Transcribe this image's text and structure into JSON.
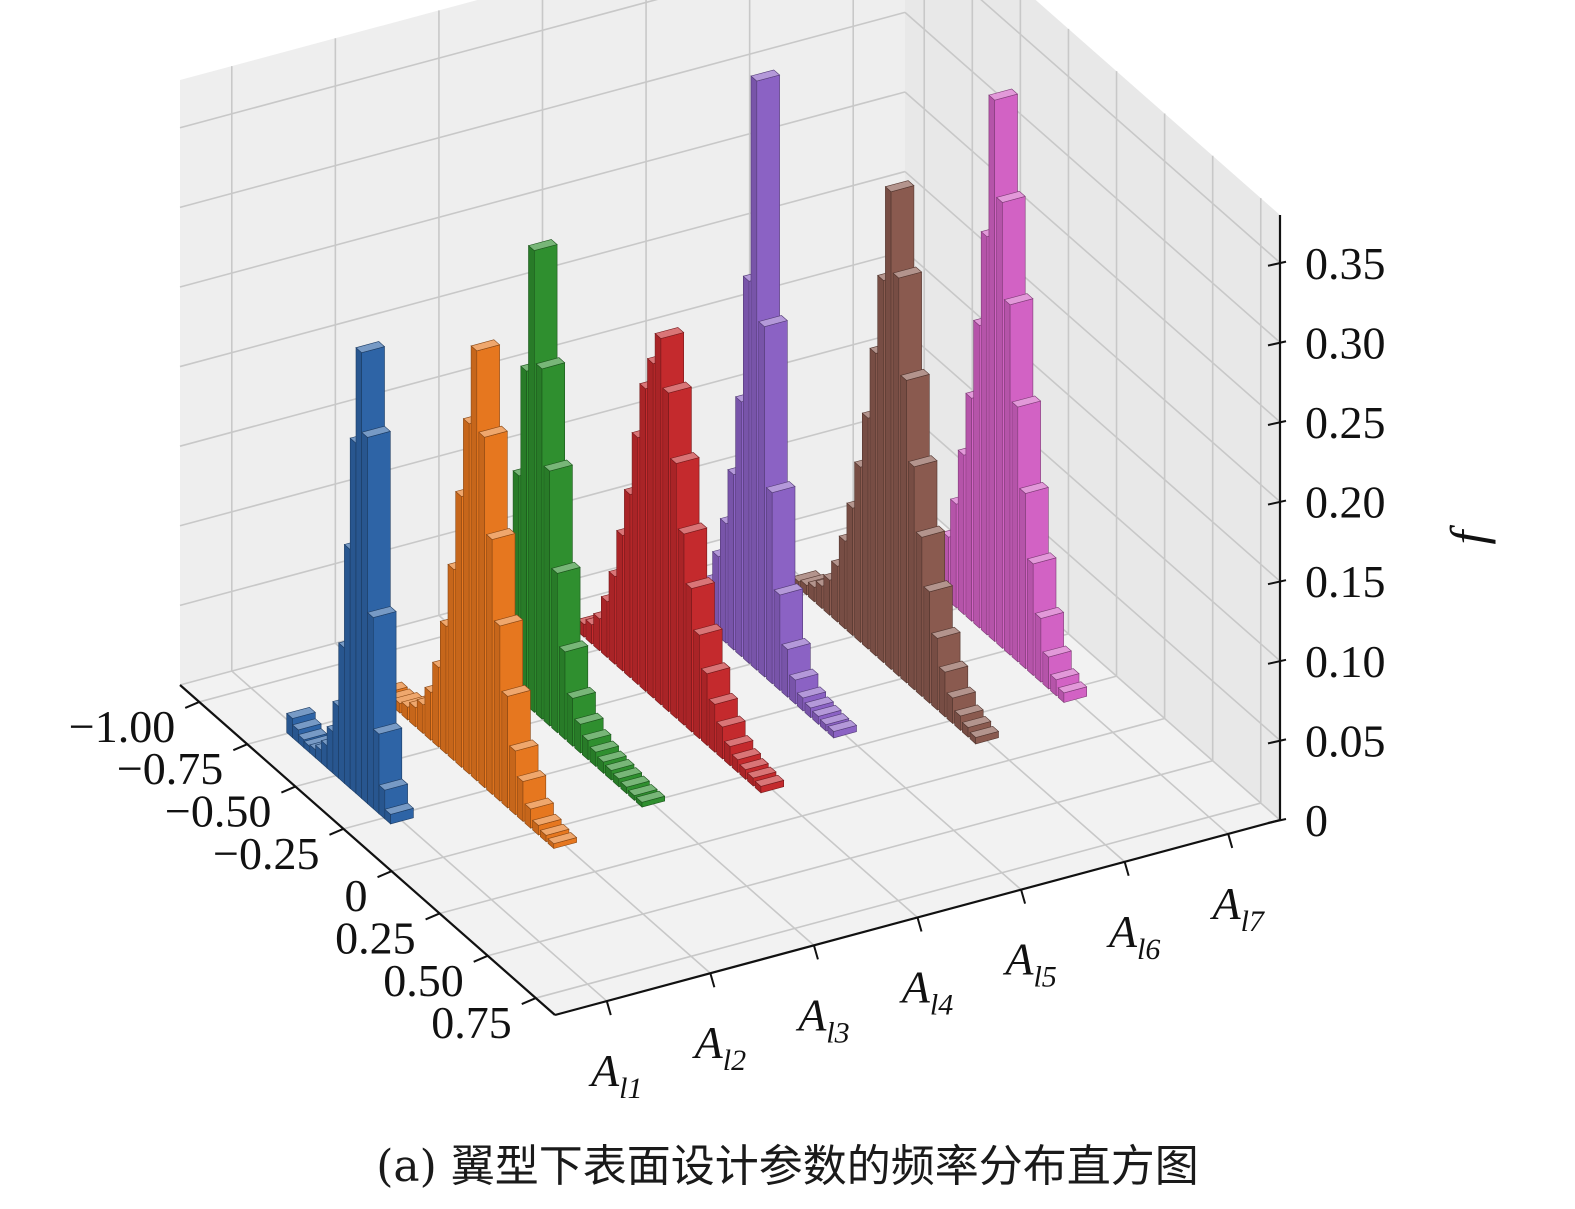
{
  "caption": "(a) 翼型下表面设计参数的频率分布直方图",
  "chart_data": {
    "type": "bar3d",
    "zlabel": "f",
    "zlim": [
      0,
      0.38
    ],
    "z_ticks": [
      "0",
      "0.05",
      "0.10",
      "0.15",
      "0.20",
      "0.25",
      "0.30",
      "0.35"
    ],
    "z_tick_values": [
      0,
      0.05,
      0.1,
      0.15,
      0.2,
      0.25,
      0.3,
      0.35
    ],
    "x_ticks": [
      "−1.00",
      "−0.75",
      "−0.50",
      "−0.25",
      "0",
      "0.25",
      "0.50",
      "0.75"
    ],
    "x_tick_values": [
      -1.0,
      -0.75,
      -0.5,
      -0.25,
      0,
      0.25,
      0.5,
      0.75
    ],
    "xlim": [
      -1.1,
      0.85
    ],
    "series": [
      {
        "name": "A",
        "sub": "l1",
        "color": "#2e64a6",
        "x": [
          -0.74,
          -0.71,
          -0.68,
          -0.65,
          -0.62,
          -0.59,
          -0.56,
          -0.53,
          -0.5,
          -0.47,
          -0.44,
          -0.41,
          -0.38,
          -0.35,
          -0.32,
          -0.29,
          -0.26,
          -0.23
        ],
        "values": [
          0.012,
          0.008,
          0.005,
          0.004,
          0.005,
          0.008,
          0.014,
          0.026,
          0.045,
          0.085,
          0.15,
          0.22,
          0.28,
          0.23,
          0.12,
          0.05,
          0.018,
          0.006
        ]
      },
      {
        "name": "A",
        "sub": "l2",
        "color": "#e6771f",
        "x": [
          -0.8,
          -0.76,
          -0.72,
          -0.68,
          -0.64,
          -0.6,
          -0.56,
          -0.52,
          -0.48,
          -0.44,
          -0.4,
          -0.36,
          -0.32,
          -0.28,
          -0.24,
          -0.2,
          -0.16,
          -0.12,
          -0.08,
          -0.04,
          0.0,
          0.04,
          0.08
        ],
        "values": [
          0.004,
          0.004,
          0.006,
          0.008,
          0.012,
          0.018,
          0.03,
          0.05,
          0.08,
          0.12,
          0.17,
          0.22,
          0.27,
          0.22,
          0.16,
          0.11,
          0.07,
          0.04,
          0.025,
          0.012,
          0.006,
          0.004,
          0.003
        ]
      },
      {
        "name": "A",
        "sub": "l3",
        "color": "#2f8f2f",
        "x": [
          -0.88,
          -0.84,
          -0.8,
          -0.76,
          -0.72,
          -0.68,
          -0.64,
          -0.6,
          -0.56,
          -0.52,
          -0.48,
          -0.44,
          -0.4,
          -0.36,
          -0.32,
          -0.28,
          -0.24,
          -0.2,
          -0.16,
          -0.12,
          -0.08,
          -0.04,
          0.0
        ],
        "values": [
          0.004,
          0.006,
          0.01,
          0.02,
          0.045,
          0.085,
          0.14,
          0.21,
          0.29,
          0.22,
          0.16,
          0.1,
          0.055,
          0.03,
          0.018,
          0.012,
          0.009,
          0.007,
          0.006,
          0.005,
          0.004,
          0.003,
          0.003
        ]
      },
      {
        "name": "A",
        "sub": "l4",
        "color": "#c42a2d",
        "x": [
          -0.84,
          -0.8,
          -0.76,
          -0.72,
          -0.68,
          -0.64,
          -0.6,
          -0.56,
          -0.52,
          -0.48,
          -0.44,
          -0.4,
          -0.36,
          -0.32,
          -0.28,
          -0.24,
          -0.2,
          -0.16,
          -0.12,
          -0.08,
          -0.04,
          0.0,
          0.04,
          0.08
        ],
        "values": [
          0.008,
          0.012,
          0.02,
          0.035,
          0.055,
          0.085,
          0.115,
          0.155,
          0.19,
          0.21,
          0.23,
          0.2,
          0.16,
          0.12,
          0.09,
          0.065,
          0.045,
          0.03,
          0.02,
          0.012,
          0.008,
          0.006,
          0.005,
          0.004
        ]
      },
      {
        "name": "A",
        "sub": "l5",
        "color": "#8b62c4",
        "x": [
          -0.92,
          -0.88,
          -0.84,
          -0.8,
          -0.76,
          -0.72,
          -0.68,
          -0.64,
          -0.6,
          -0.56,
          -0.52,
          -0.48,
          -0.44,
          -0.4,
          -0.36,
          -0.32,
          -0.28,
          -0.24,
          -0.2,
          -0.16,
          -0.12,
          -0.08
        ],
        "values": [
          0.004,
          0.004,
          0.006,
          0.01,
          0.018,
          0.03,
          0.05,
          0.075,
          0.11,
          0.16,
          0.24,
          0.37,
          0.22,
          0.12,
          0.06,
          0.03,
          0.015,
          0.008,
          0.006,
          0.005,
          0.004,
          0.004
        ]
      },
      {
        "name": "A",
        "sub": "l6",
        "color": "#8a5a4f",
        "x": [
          -0.8,
          -0.76,
          -0.72,
          -0.68,
          -0.64,
          -0.6,
          -0.56,
          -0.52,
          -0.48,
          -0.44,
          -0.4,
          -0.36,
          -0.32,
          -0.28,
          -0.24,
          -0.2,
          -0.16,
          -0.12,
          -0.08,
          -0.04,
          0.0,
          0.04,
          0.08,
          0.12
        ],
        "values": [
          0.004,
          0.006,
          0.009,
          0.014,
          0.022,
          0.035,
          0.055,
          0.08,
          0.11,
          0.145,
          0.19,
          0.24,
          0.3,
          0.25,
          0.19,
          0.14,
          0.1,
          0.07,
          0.045,
          0.028,
          0.016,
          0.009,
          0.006,
          0.004
        ]
      },
      {
        "name": "A",
        "sub": "l7",
        "color": "#d262c4",
        "x": [
          -0.72,
          -0.68,
          -0.64,
          -0.6,
          -0.56,
          -0.52,
          -0.48,
          -0.44,
          -0.4,
          -0.36,
          -0.32,
          -0.28,
          -0.24,
          -0.2,
          -0.16,
          -0.12,
          -0.08,
          -0.04,
          0.0,
          0.04
        ],
        "values": [
          0.004,
          0.006,
          0.012,
          0.022,
          0.04,
          0.065,
          0.1,
          0.14,
          0.19,
          0.25,
          0.34,
          0.28,
          0.22,
          0.16,
          0.11,
          0.07,
          0.04,
          0.02,
          0.01,
          0.006
        ]
      }
    ]
  }
}
